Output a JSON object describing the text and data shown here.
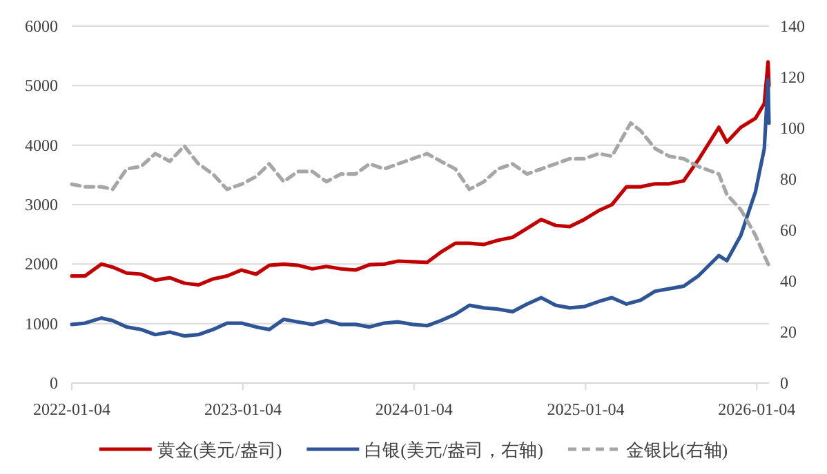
{
  "chart_data": {
    "type": "line",
    "xlim": [
      "2022-01-04",
      "2026-01-30"
    ],
    "xticks": [
      "2022-01-04",
      "2023-01-04",
      "2024-01-04",
      "2025-01-04",
      "2026-01-04"
    ],
    "ylim": [
      0,
      6000
    ],
    "yticks": [
      0,
      1000,
      2000,
      3000,
      4000,
      5000,
      6000
    ],
    "y2lim": [
      0,
      140
    ],
    "y2ticks": [
      0,
      20,
      40,
      60,
      80,
      100,
      120,
      140
    ],
    "grid": "y",
    "legend": "bottom",
    "marker": "none",
    "series": [
      {
        "name": "黄金(美元/盎司)",
        "color": "#c00000",
        "line_style": "solid",
        "x": [
          "2022-01-04",
          "2022-02-01",
          "2022-03-08",
          "2022-04-01",
          "2022-05-01",
          "2022-06-01",
          "2022-07-01",
          "2022-08-01",
          "2022-09-01",
          "2022-10-01",
          "2022-11-01",
          "2022-12-01",
          "2023-01-01",
          "2023-02-01",
          "2023-03-01",
          "2023-04-01",
          "2023-05-01",
          "2023-06-01",
          "2023-07-01",
          "2023-08-01",
          "2023-09-01",
          "2023-10-01",
          "2023-11-01",
          "2023-12-01",
          "2024-01-01",
          "2024-02-01",
          "2024-03-01",
          "2024-04-01",
          "2024-05-01",
          "2024-06-01",
          "2024-07-01",
          "2024-08-01",
          "2024-09-01",
          "2024-10-01",
          "2024-11-01",
          "2024-12-01",
          "2025-01-01",
          "2025-02-01",
          "2025-03-01",
          "2025-04-01",
          "2025-05-01",
          "2025-06-01",
          "2025-07-01",
          "2025-08-01",
          "2025-09-01",
          "2025-10-15",
          "2025-11-01",
          "2025-12-01",
          "2026-01-01",
          "2026-01-20",
          "2026-01-28",
          "2026-01-30"
        ],
        "values": [
          1800,
          1800,
          2000,
          1950,
          1850,
          1830,
          1730,
          1770,
          1680,
          1650,
          1750,
          1800,
          1900,
          1830,
          1980,
          2000,
          1980,
          1920,
          1960,
          1920,
          1900,
          1990,
          2000,
          2050,
          2040,
          2030,
          2200,
          2350,
          2350,
          2330,
          2400,
          2450,
          2600,
          2750,
          2650,
          2630,
          2750,
          2900,
          3000,
          3300,
          3300,
          3350,
          3350,
          3400,
          3750,
          4300,
          4050,
          4300,
          4450,
          4700,
          5400,
          5000
        ],
        "axis": "y"
      },
      {
        "name": "白银(美元/盎司，右轴)",
        "color": "#2f5597",
        "line_style": "solid",
        "x": [
          "2022-01-04",
          "2022-02-01",
          "2022-03-08",
          "2022-04-01",
          "2022-05-01",
          "2022-06-01",
          "2022-07-01",
          "2022-08-01",
          "2022-09-01",
          "2022-10-01",
          "2022-11-01",
          "2022-12-01",
          "2023-01-01",
          "2023-02-01",
          "2023-03-01",
          "2023-04-01",
          "2023-05-01",
          "2023-06-01",
          "2023-07-01",
          "2023-08-01",
          "2023-09-01",
          "2023-10-01",
          "2023-11-01",
          "2023-12-01",
          "2024-01-01",
          "2024-02-01",
          "2024-03-01",
          "2024-04-01",
          "2024-05-01",
          "2024-06-01",
          "2024-07-01",
          "2024-08-01",
          "2024-09-01",
          "2024-10-01",
          "2024-11-01",
          "2024-12-01",
          "2025-01-01",
          "2025-02-01",
          "2025-03-01",
          "2025-04-01",
          "2025-05-01",
          "2025-06-01",
          "2025-07-01",
          "2025-08-01",
          "2025-09-01",
          "2025-10-15",
          "2025-11-01",
          "2025-12-01",
          "2026-01-01",
          "2026-01-20",
          "2026-01-28",
          "2026-01-30"
        ],
        "values": [
          23,
          23.5,
          25.5,
          24.5,
          22,
          21,
          19,
          20,
          18.5,
          19,
          21,
          23.5,
          23.5,
          22,
          21,
          25,
          24,
          23,
          24.5,
          23,
          23,
          22,
          23.5,
          24,
          23,
          22.5,
          24.5,
          27,
          30.5,
          29.5,
          29,
          28,
          31,
          33.5,
          30.5,
          29.5,
          30,
          32,
          33.5,
          31,
          32.5,
          36,
          37,
          38,
          42,
          50,
          48,
          58,
          75,
          92,
          119,
          102
        ],
        "axis": "y2"
      },
      {
        "name": "金银比(右轴)",
        "color": "#a6a6a6",
        "line_style": "dashed",
        "x": [
          "2022-01-04",
          "2022-02-01",
          "2022-03-08",
          "2022-04-01",
          "2022-05-01",
          "2022-06-01",
          "2022-07-01",
          "2022-08-01",
          "2022-09-01",
          "2022-10-01",
          "2022-11-01",
          "2022-12-01",
          "2023-01-01",
          "2023-02-01",
          "2023-03-01",
          "2023-04-01",
          "2023-05-01",
          "2023-06-01",
          "2023-07-01",
          "2023-08-01",
          "2023-09-01",
          "2023-10-01",
          "2023-11-01",
          "2023-12-01",
          "2024-01-01",
          "2024-02-01",
          "2024-03-01",
          "2024-04-01",
          "2024-05-01",
          "2024-06-01",
          "2024-07-01",
          "2024-08-01",
          "2024-09-01",
          "2024-10-01",
          "2024-11-01",
          "2024-12-01",
          "2025-01-01",
          "2025-02-01",
          "2025-03-01",
          "2025-04-10",
          "2025-05-01",
          "2025-06-01",
          "2025-07-01",
          "2025-08-01",
          "2025-09-01",
          "2025-10-15",
          "2025-11-01",
          "2025-12-01",
          "2026-01-01",
          "2026-01-20",
          "2026-01-30"
        ],
        "values": [
          78,
          77,
          77,
          76,
          84,
          85,
          90,
          87,
          93,
          86,
          82,
          76,
          78,
          81,
          86,
          79,
          83,
          83,
          79,
          82,
          82,
          86,
          84,
          86,
          88,
          90,
          87,
          84,
          76,
          79,
          84,
          86,
          82,
          84,
          86,
          88,
          88,
          90,
          89,
          102,
          99,
          92,
          89,
          88,
          85,
          82,
          74,
          68,
          58,
          50,
          46
        ],
        "axis": "y2"
      }
    ]
  }
}
